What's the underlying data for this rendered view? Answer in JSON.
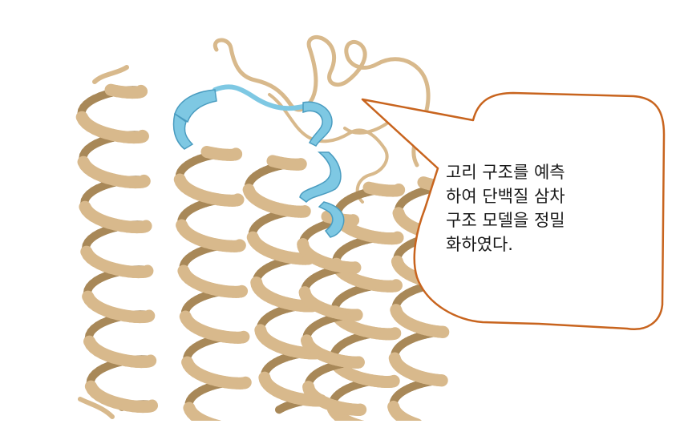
{
  "figure": {
    "description_lines": [
      "고리 구조를 예측",
      "하여 단백질 삼차",
      "구조 모델을 정밀",
      "화하였다."
    ],
    "colors": {
      "helix": "#d8b98c",
      "helix_dark": "#a88858",
      "loop_highlight": "#7ec8e3",
      "loop_highlight_dark": "#4a9cc0",
      "callout_border": "#c8641e",
      "background": "#ffffff"
    }
  }
}
